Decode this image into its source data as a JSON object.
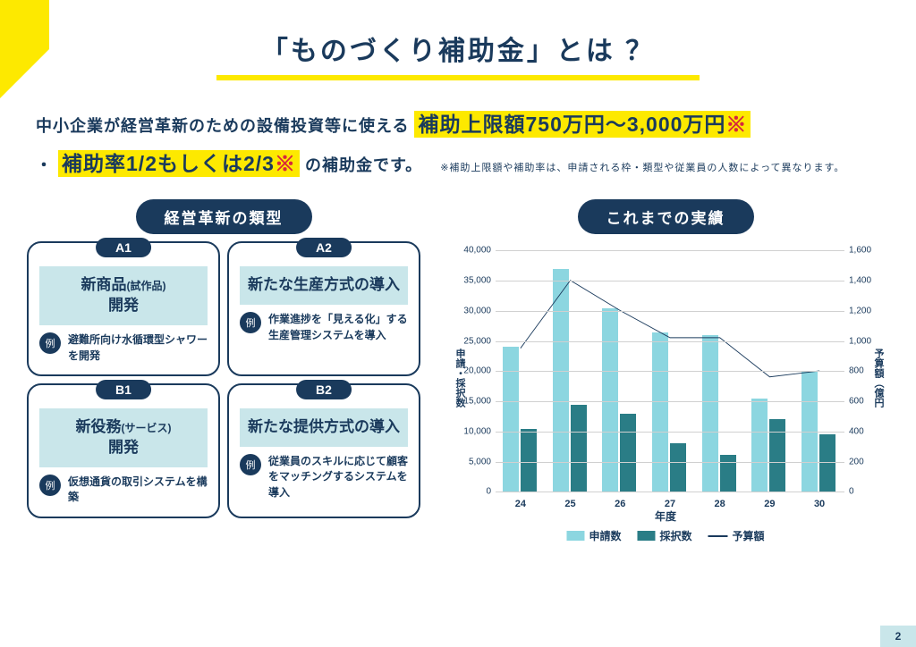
{
  "title": "「ものづくり補助金」とは ？",
  "intro": {
    "line1_pre": "中小企業が経営革新のための設備投資等に使える",
    "hl1": "補助上限額750万円～3,000万円",
    "bullet": "・",
    "hl2": "補助率1/2もしくは2/3",
    "line2_post": "の補助金です。",
    "note": "※補助上限額や補助率は、申請される枠・類型や従業員の人数によって異なります。"
  },
  "left": {
    "heading": "経営革新の類型",
    "example_label": "例",
    "cards": [
      {
        "badge": "A1",
        "title": "新商品",
        "sub": "(試作品)",
        "title2": "開発",
        "ex": "避難所向け水循環型シャワーを開発"
      },
      {
        "badge": "A2",
        "title": "新たな生産方式の導入",
        "sub": "",
        "title2": "",
        "ex": "作業進捗を「見える化」する生産管理システムを導入"
      },
      {
        "badge": "B1",
        "title": "新役務",
        "sub": "(サービス)",
        "title2": "開発",
        "ex": "仮想通貨の取引システムを構築"
      },
      {
        "badge": "B2",
        "title": "新たな提供方式の導入",
        "sub": "",
        "title2": "",
        "ex": "従業員のスキルに応じて顧客をマッチングするシステムを導入"
      }
    ]
  },
  "right": {
    "heading": "これまでの実績",
    "axis_left_label": "申請・採択数",
    "axis_right_label": "予算額（億円",
    "x_label": "年度",
    "legend": [
      "申請数",
      "採択数",
      "予算額"
    ]
  },
  "chart": {
    "type": "bar+line",
    "categories": [
      "24",
      "25",
      "26",
      "27",
      "28",
      "29",
      "30"
    ],
    "applications": [
      24000,
      37000,
      30500,
      26500,
      26000,
      15500,
      20000
    ],
    "adoptions": [
      10500,
      14500,
      13000,
      8000,
      6200,
      12000,
      9500
    ],
    "budget": [
      950,
      1400,
      1200,
      1020,
      1020,
      760,
      800
    ],
    "left_max": 40000,
    "left_step": 5000,
    "right_max": 1600,
    "right_step": 200,
    "bar1_color": "#8cd6e0",
    "bar2_color": "#2a7d86",
    "line_color": "#1a3a5c",
    "grid_color": "#d0d0d0",
    "background": "#ffffff"
  },
  "page_number": "2",
  "colors": {
    "navy": "#1a3a5c",
    "yellow": "#fde900",
    "teal_light": "#c9e6ea",
    "bar_light": "#8cd6e0",
    "bar_dark": "#2a7d86",
    "red": "#d7263d"
  }
}
